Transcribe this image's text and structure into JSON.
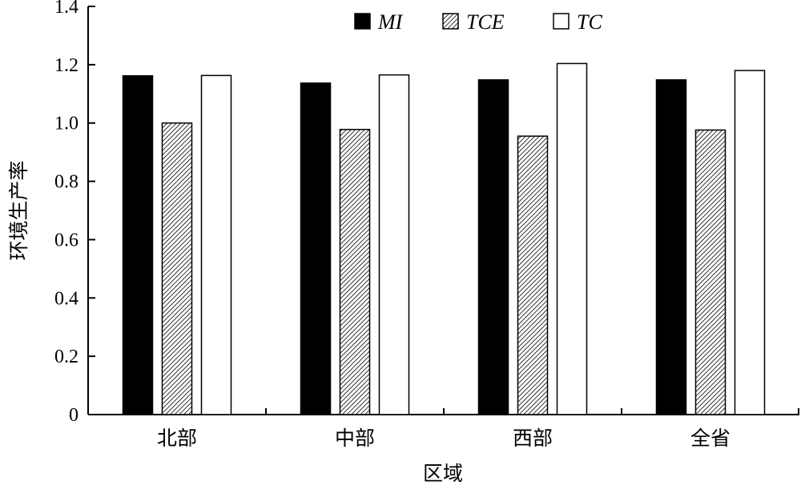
{
  "chart_data": {
    "type": "bar",
    "categories": [
      "北部",
      "中部",
      "西部",
      "全省"
    ],
    "series": [
      {
        "name": "MI",
        "values": [
          1.162,
          1.137,
          1.148,
          1.148
        ],
        "fill": "#000000"
      },
      {
        "name": "TCE",
        "values": [
          1.0,
          0.978,
          0.955,
          0.976
        ],
        "fill": "hatch"
      },
      {
        "name": "TC",
        "values": [
          1.163,
          1.165,
          1.204,
          1.18
        ],
        "fill": "#ffffff"
      }
    ],
    "title": "",
    "xlabel": "区域",
    "ylabel": "环境生产率",
    "ylim": [
      0,
      1.4
    ],
    "yticks": [
      "0",
      "0.2",
      "0.4",
      "0.6",
      "0.8",
      "1.0",
      "1.2",
      "1.4"
    ],
    "grid": false,
    "legend_position": "top"
  }
}
